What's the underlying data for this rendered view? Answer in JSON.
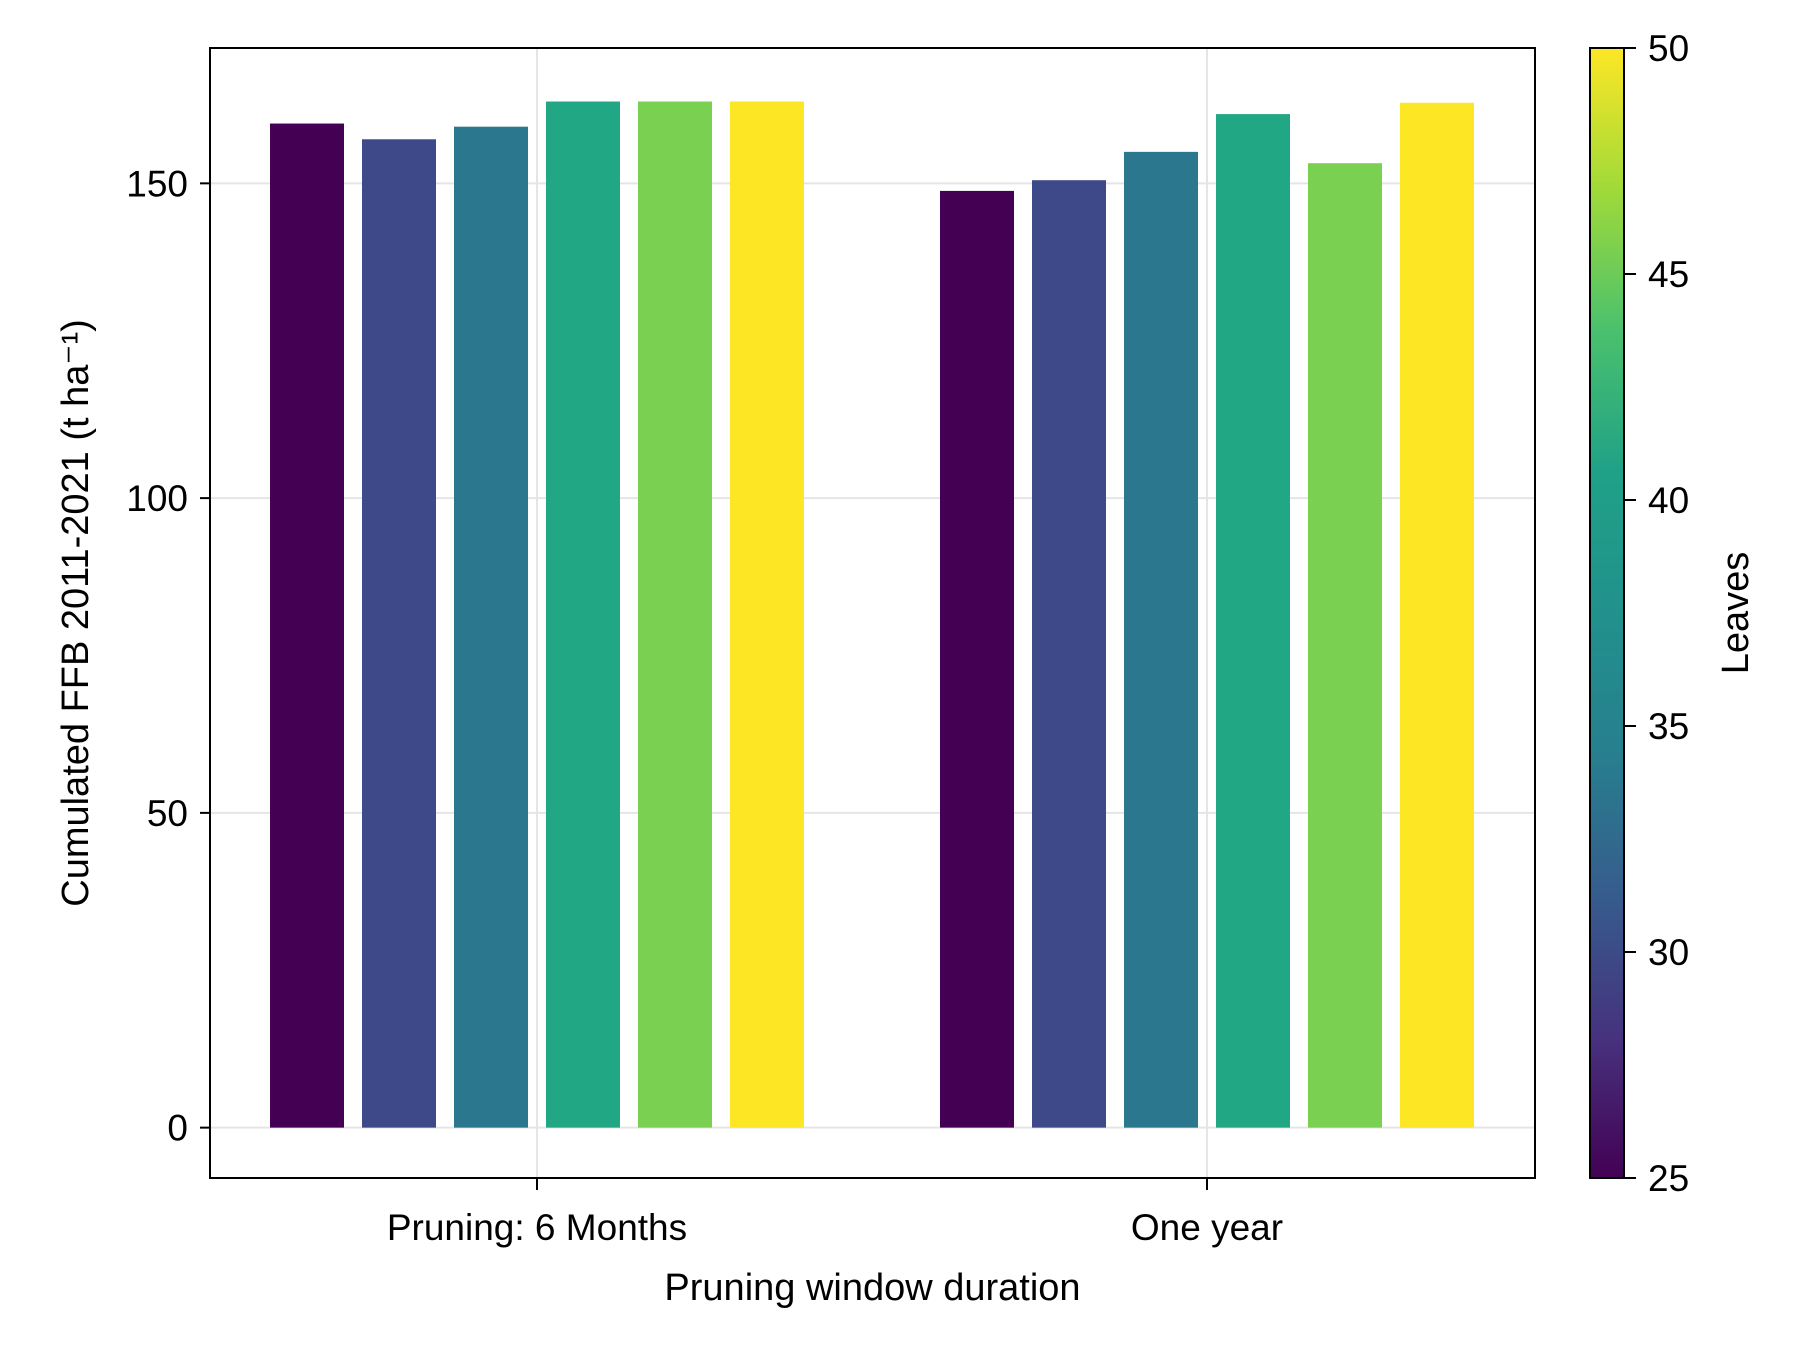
{
  "chart_data": {
    "type": "bar",
    "xlabel": "Pruning window duration",
    "ylabel": "Cumulated FFB 2011-2021 (t ha⁻¹)",
    "categories": [
      "Pruning: 6 Months",
      "One year"
    ],
    "ylim": [
      -8,
      171.5
    ],
    "yticks": [
      0,
      50,
      100,
      150
    ],
    "grid": true,
    "series": [
      {
        "leaves": 25,
        "color": "#440154",
        "values": [
          159.5,
          148.8
        ]
      },
      {
        "leaves": 30,
        "color": "#3e4989",
        "values": [
          157.0,
          150.5
        ]
      },
      {
        "leaves": 35,
        "color": "#2b778e",
        "values": [
          159.0,
          155.0
        ]
      },
      {
        "leaves": 40,
        "color": "#22a785",
        "values": [
          163.0,
          161.0
        ]
      },
      {
        "leaves": 45,
        "color": "#7ad151",
        "values": [
          163.0,
          153.2
        ]
      },
      {
        "leaves": 50,
        "color": "#fde725",
        "values": [
          163.0,
          162.8
        ]
      }
    ],
    "colorbar": {
      "label": "Leaves",
      "range": [
        25,
        50
      ],
      "ticks": [
        25,
        30,
        35,
        40,
        45,
        50
      ],
      "colormap": "viridis"
    }
  }
}
